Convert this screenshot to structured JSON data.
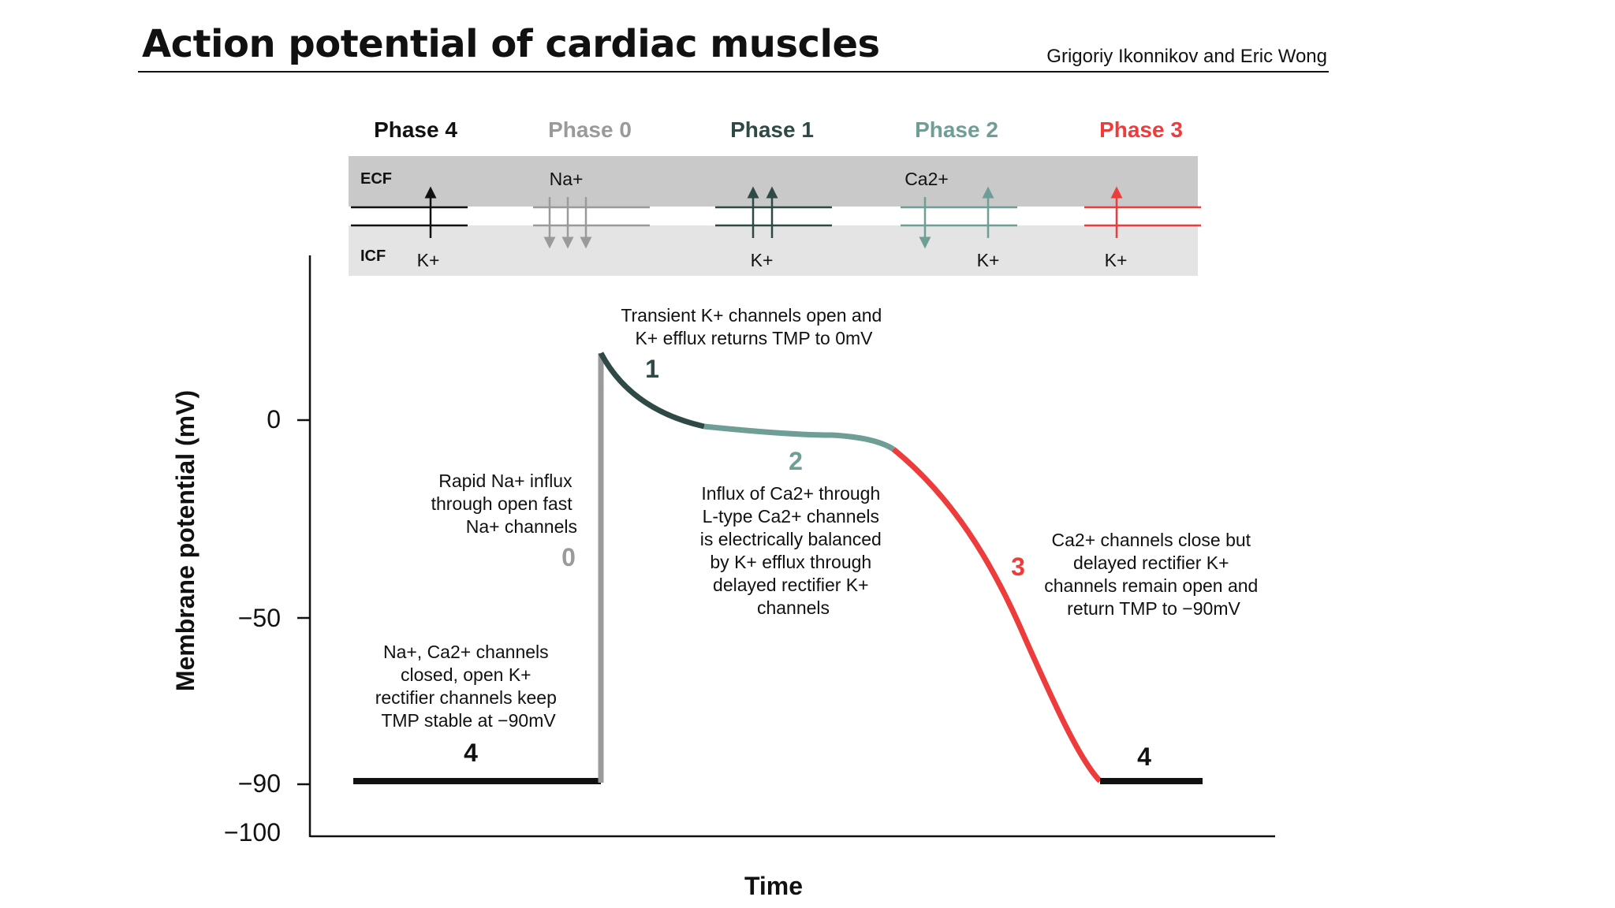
{
  "header": {
    "title": "Action potential of cardiac muscles",
    "authors": "Grigoriy Ikonnikov and Eric Wong"
  },
  "colors": {
    "phase4": "#111111",
    "phase0": "#9a9a9a",
    "phase1": "#2f4a46",
    "phase2": "#6e9e96",
    "phase3": "#ee3b3b",
    "ecf_band": "#c9c9c9",
    "icf_band": "#e4e4e4"
  },
  "membrane": {
    "ecf_label": "ECF",
    "icf_label": "ICF",
    "phases": [
      {
        "label": "Phase 4",
        "ion_top": "",
        "ion_bottom": "K+",
        "arrows": "up"
      },
      {
        "label": "Phase 0",
        "ion_top": "Na+",
        "ion_bottom": "",
        "arrows": "down3"
      },
      {
        "label": "Phase 1",
        "ion_top": "",
        "ion_bottom": "K+",
        "arrows": "up2"
      },
      {
        "label": "Phase 2",
        "ion_top": "Ca2+",
        "ion_bottom": "K+",
        "arrows": "downup"
      },
      {
        "label": "Phase 3",
        "ion_top": "",
        "ion_bottom": "K+",
        "arrows": "up"
      }
    ]
  },
  "axes": {
    "ylabel": "Membrane potential (mV)",
    "xlabel": "Time",
    "yticks": [
      "0",
      "−50",
      "−90",
      "−100"
    ]
  },
  "curve_labels": {
    "p4_left": "4",
    "p0": "0",
    "p1": "1",
    "p2": "2",
    "p3": "3",
    "p4_right": "4"
  },
  "annotations": {
    "phase1": [
      "Transient K+ channels open and",
      "K+ efflux returns TMP to 0mV"
    ],
    "phase0": [
      "Rapid Na+ influx",
      "through open fast",
      "Na+ channels"
    ],
    "phase2": [
      "Influx of Ca2+ through",
      "L-type Ca2+ channels",
      "is electrically balanced",
      "by K+ efflux through",
      "delayed rectifier K+",
      "channels"
    ],
    "phase3": [
      "Ca2+ channels close but",
      "delayed rectifier K+",
      "channels remain open and",
      "return TMP to −90mV"
    ],
    "phase4": [
      "Na+, Ca2+ channels",
      "closed, open K+",
      "rectifier channels keep",
      "TMP stable at −90mV"
    ]
  }
}
